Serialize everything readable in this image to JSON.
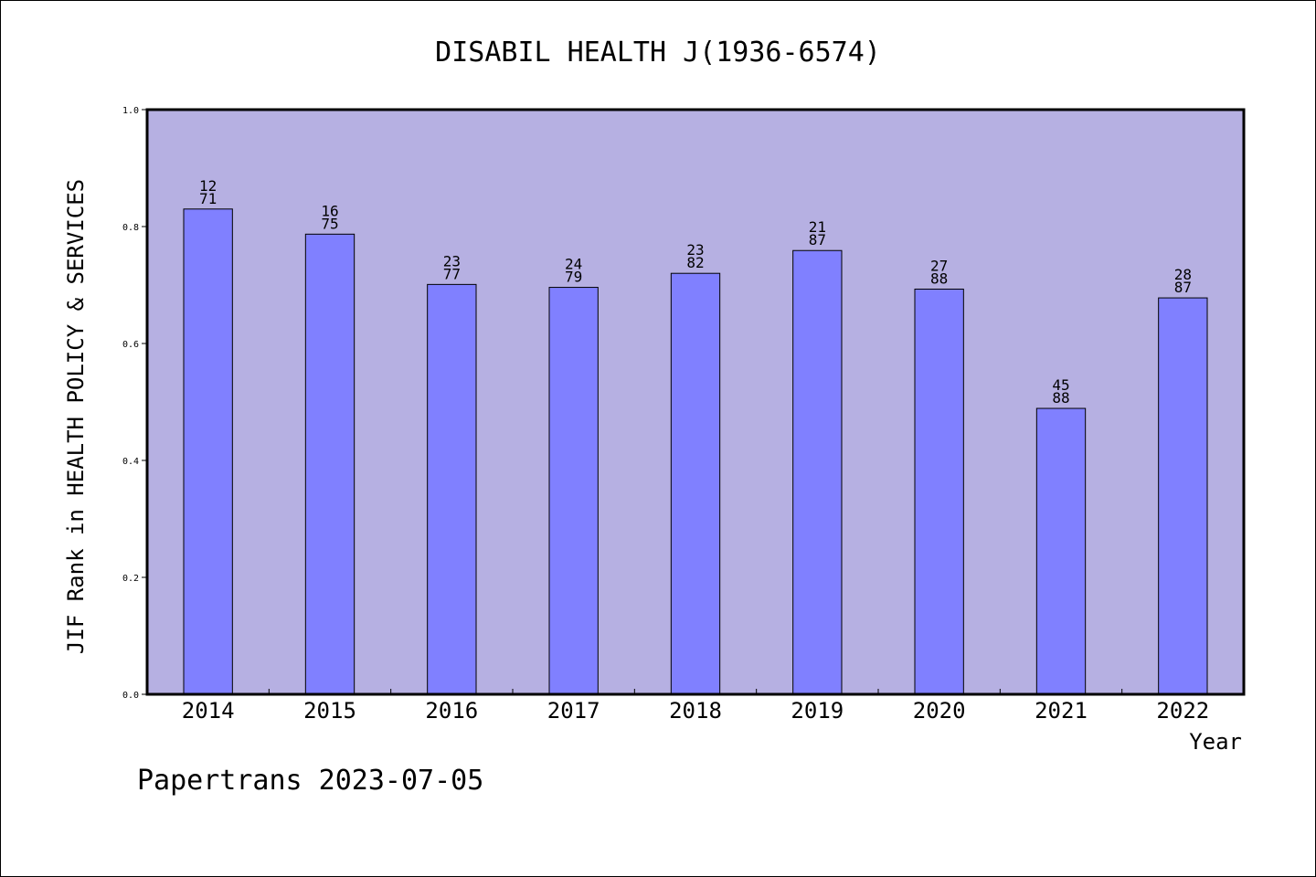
{
  "chart_data": {
    "type": "bar",
    "title": "DISABIL HEALTH J(1936-6574)",
    "xlabel": "Year",
    "ylabel": "JIF Rank in HEALTH POLICY & SERVICES",
    "ylim": [
      0,
      1.0
    ],
    "yticks": [
      "0.0",
      "0.2",
      "0.4",
      "0.6",
      "0.8",
      "1.0"
    ],
    "categories": [
      "2014",
      "2015",
      "2016",
      "2017",
      "2018",
      "2019",
      "2020",
      "2021",
      "2022"
    ],
    "values": [
      0.83,
      0.787,
      0.701,
      0.696,
      0.72,
      0.759,
      0.693,
      0.489,
      0.678
    ],
    "bar_labels": [
      [
        "12",
        "71"
      ],
      [
        "16",
        "75"
      ],
      [
        "23",
        "77"
      ],
      [
        "24",
        "79"
      ],
      [
        "23",
        "82"
      ],
      [
        "21",
        "87"
      ],
      [
        "27",
        "88"
      ],
      [
        "45",
        "88"
      ],
      [
        "28",
        "87"
      ]
    ],
    "grid": false,
    "colors": {
      "plot_background": "#b6b0e2",
      "bar_fill": "#8080ff",
      "bar_stroke": "#000000"
    }
  },
  "footer": {
    "text": "Papertrans 2023-07-05"
  }
}
